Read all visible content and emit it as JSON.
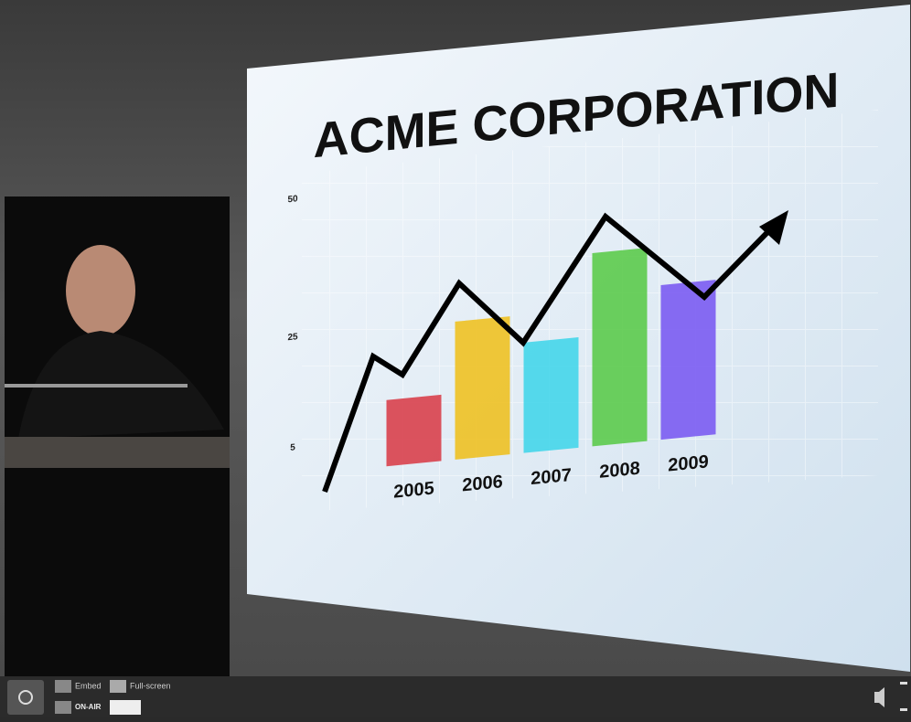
{
  "chart_data": {
    "type": "bar",
    "title": "ACME CORPORATION",
    "categories": [
      "2005",
      "2006",
      "2007",
      "2008",
      "2009"
    ],
    "values": [
      12,
      25,
      20,
      35,
      28
    ],
    "colors": [
      "#d8404c",
      "#eec124",
      "#45d6ea",
      "#5ccb4c",
      "#7b5cf2"
    ],
    "ylim": [
      0,
      50
    ],
    "yticks": [
      5,
      25,
      50
    ]
  },
  "player": {
    "embed": "Embed",
    "fullscreen": "Full-screen",
    "on_air": "ON-AIR"
  }
}
